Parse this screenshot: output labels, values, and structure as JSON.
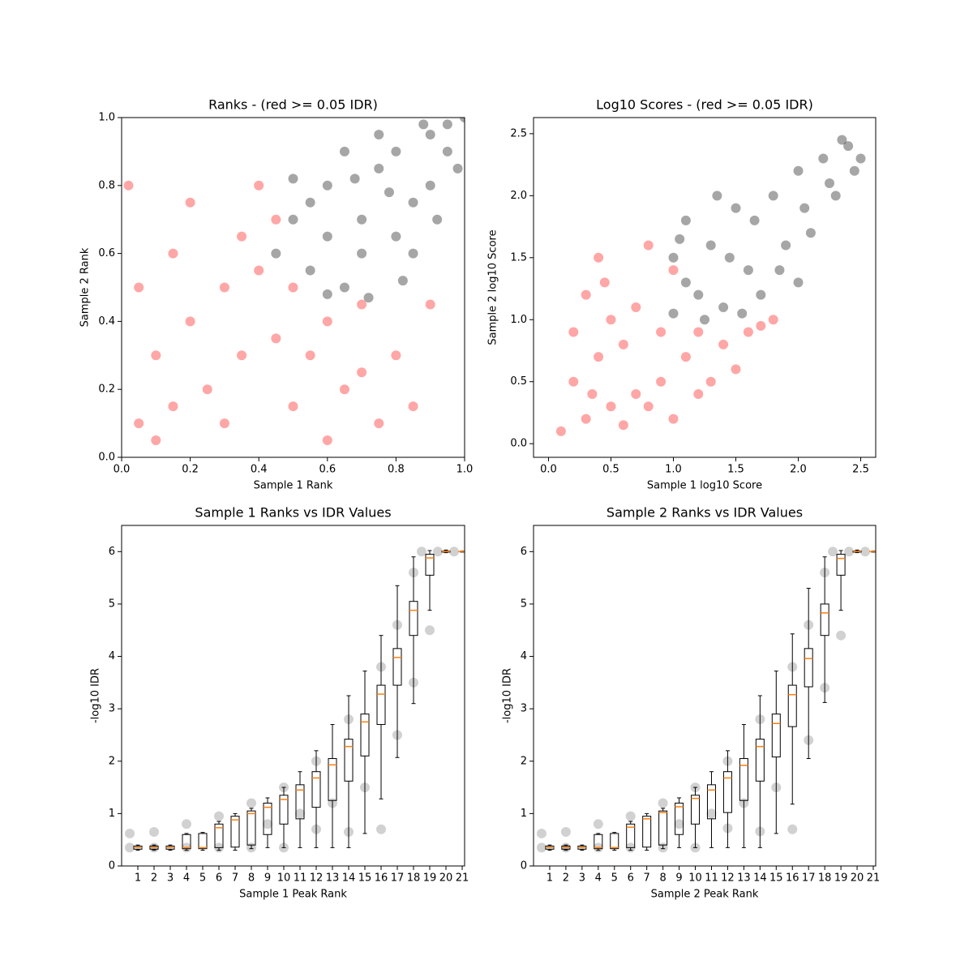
{
  "chart_data": [
    {
      "type": "scatter",
      "title": "Ranks - (red >= 0.05 IDR)",
      "xlabel": "Sample 1 Rank",
      "ylabel": "Sample 2 Rank",
      "xlim": [
        0,
        1
      ],
      "ylim": [
        0,
        1
      ],
      "xticks": [
        {
          "value": 0,
          "label": "0.0"
        },
        {
          "value": 0.2,
          "label": "0.2"
        },
        {
          "value": 0.4,
          "label": "0.4"
        },
        {
          "value": 0.6,
          "label": "0.6"
        },
        {
          "value": 0.8,
          "label": "0.8"
        },
        {
          "value": 1,
          "label": "1.0"
        }
      ],
      "yticks": [
        {
          "value": 0,
          "label": "0.0"
        },
        {
          "value": 0.2,
          "label": "0.2"
        },
        {
          "value": 0.4,
          "label": "0.4"
        },
        {
          "value": 0.6,
          "label": "0.6"
        },
        {
          "value": 0.8,
          "label": "0.8"
        },
        {
          "value": 1,
          "label": "1.0"
        }
      ],
      "series": [
        {
          "color": "#ff0000",
          "x": [
            0.05,
            0.1,
            0.15,
            0.2,
            0.3,
            0.25,
            0.35,
            0.4,
            0.45,
            0.5,
            0.55,
            0.6,
            0.65,
            0.7,
            0.75,
            0.8,
            0.85,
            0.05,
            0.02,
            0.1,
            0.2,
            0.3,
            0.4,
            0.15,
            0.35,
            0.45,
            0.6,
            0.7,
            0.9,
            0.5
          ],
          "y": [
            0.1,
            0.3,
            0.6,
            0.75,
            0.5,
            0.2,
            0.65,
            0.8,
            0.35,
            0.15,
            0.3,
            0.4,
            0.2,
            0.45,
            0.1,
            0.3,
            0.15,
            0.5,
            0.8,
            0.05,
            0.4,
            0.1,
            0.55,
            0.15,
            0.3,
            0.7,
            0.05,
            0.25,
            0.45,
            0.5
          ]
        },
        {
          "color": "#000000",
          "x": [
            0.45,
            0.5,
            0.55,
            0.6,
            0.65,
            0.7,
            0.75,
            0.8,
            0.85,
            0.9,
            0.95,
            1.0,
            0.7,
            0.8,
            0.9,
            0.6,
            0.55,
            0.5,
            0.65,
            0.75,
            0.85,
            0.92,
            0.98,
            0.6,
            0.72,
            0.88,
            0.78,
            0.68,
            0.82,
            0.95
          ],
          "y": [
            0.6,
            0.7,
            0.55,
            0.8,
            0.5,
            0.7,
            0.85,
            0.9,
            0.75,
            0.95,
            0.9,
            1.0,
            0.6,
            0.65,
            0.8,
            0.65,
            0.75,
            0.82,
            0.9,
            0.95,
            0.6,
            0.7,
            0.85,
            0.48,
            0.47,
            0.98,
            0.78,
            0.82,
            0.52,
            0.98
          ]
        }
      ]
    },
    {
      "type": "scatter",
      "title": "Log10 Scores - (red >= 0.05 IDR)",
      "xlabel": "Sample 1 log10 Score",
      "ylabel": "Sample 2 log10 Score",
      "xlim": [
        -0.12,
        2.62
      ],
      "ylim": [
        -0.11,
        2.63
      ],
      "xticks": [
        {
          "value": 0,
          "label": "0.0"
        },
        {
          "value": 0.5,
          "label": "0.5"
        },
        {
          "value": 1,
          "label": "1.0"
        },
        {
          "value": 1.5,
          "label": "1.5"
        },
        {
          "value": 2,
          "label": "2.0"
        },
        {
          "value": 2.5,
          "label": "2.5"
        }
      ],
      "yticks": [
        {
          "value": 0,
          "label": "0.0"
        },
        {
          "value": 0.5,
          "label": "0.5"
        },
        {
          "value": 1,
          "label": "1.0"
        },
        {
          "value": 1.5,
          "label": "1.5"
        },
        {
          "value": 2,
          "label": "2.0"
        },
        {
          "value": 2.5,
          "label": "2.5"
        }
      ],
      "series": [
        {
          "color": "#ff0000",
          "x": [
            0.1,
            0.2,
            0.3,
            0.4,
            0.5,
            0.6,
            0.7,
            0.8,
            0.9,
            1.0,
            1.1,
            1.2,
            1.3,
            1.4,
            1.5,
            1.6,
            1.7,
            0.3,
            0.4,
            0.5,
            0.6,
            0.7,
            0.8,
            0.9,
            1.0,
            1.2,
            0.2,
            0.45,
            0.35,
            1.8
          ],
          "y": [
            0.1,
            0.5,
            1.2,
            1.5,
            0.3,
            0.8,
            1.1,
            1.6,
            0.5,
            0.2,
            0.7,
            0.9,
            0.5,
            0.8,
            0.6,
            0.9,
            0.95,
            0.2,
            0.7,
            1.0,
            0.15,
            0.4,
            0.3,
            0.9,
            1.4,
            0.4,
            0.9,
            1.3,
            0.4,
            1.0
          ]
        },
        {
          "color": "#000000",
          "x": [
            1.0,
            1.0,
            1.1,
            1.2,
            1.3,
            1.4,
            1.5,
            1.6,
            1.7,
            1.8,
            1.9,
            2.0,
            2.1,
            2.2,
            2.3,
            2.4,
            2.5,
            1.1,
            1.25,
            1.45,
            1.65,
            1.85,
            2.05,
            2.25,
            2.45,
            1.05,
            1.35,
            1.55,
            2.0,
            2.35
          ],
          "y": [
            1.05,
            1.5,
            1.8,
            1.2,
            1.6,
            1.1,
            1.9,
            1.4,
            1.2,
            2.0,
            1.6,
            2.2,
            1.7,
            2.3,
            2.0,
            2.4,
            2.3,
            1.3,
            1.0,
            1.5,
            1.8,
            1.4,
            1.9,
            2.1,
            2.2,
            1.65,
            2.0,
            1.05,
            1.3,
            2.45
          ]
        }
      ]
    },
    {
      "type": "box",
      "title": "Sample 1 Ranks vs IDR Values",
      "xlabel": "Sample 1 Peak Rank",
      "ylabel": "-log10 IDR",
      "xlim": [
        0,
        21.15
      ],
      "ylim": [
        0,
        6.5
      ],
      "xticks": [
        1,
        2,
        3,
        4,
        5,
        6,
        7,
        8,
        9,
        10,
        11,
        12,
        13,
        14,
        15,
        16,
        17,
        18,
        19,
        20,
        21
      ],
      "yticks": [
        0,
        1,
        2,
        3,
        4,
        5,
        6
      ],
      "box_color": "#000000",
      "median_color": "#ff7f0e",
      "x": [
        1,
        2,
        3,
        4,
        5,
        6,
        7,
        8,
        9,
        10,
        11,
        12,
        13,
        14,
        15,
        16,
        17,
        18,
        19,
        20,
        21
      ],
      "whislo": [
        0.3,
        0.3,
        0.3,
        0.3,
        0.3,
        0.3,
        0.3,
        0.33,
        0.35,
        0.35,
        0.35,
        0.35,
        0.35,
        0.35,
        0.62,
        1.28,
        2.07,
        3.1,
        4.88,
        5.98,
        5.99
      ],
      "q1": [
        0.32,
        0.32,
        0.32,
        0.33,
        0.33,
        0.35,
        0.36,
        0.4,
        0.6,
        0.8,
        0.9,
        1.12,
        1.25,
        1.62,
        2.1,
        2.7,
        3.45,
        4.4,
        5.55,
        5.99,
        6.0
      ],
      "median": [
        0.35,
        0.35,
        0.35,
        0.35,
        0.35,
        0.73,
        0.88,
        1.0,
        1.12,
        1.27,
        1.45,
        1.68,
        1.93,
        2.28,
        2.75,
        3.28,
        3.98,
        4.88,
        5.88,
        6.0,
        6.0
      ],
      "q3": [
        0.38,
        0.38,
        0.38,
        0.6,
        0.62,
        0.8,
        0.95,
        1.05,
        1.2,
        1.35,
        1.55,
        1.8,
        2.05,
        2.42,
        2.9,
        3.45,
        4.15,
        5.05,
        5.95,
        6.01,
        6.0
      ],
      "whishi": [
        0.4,
        0.4,
        0.4,
        0.62,
        0.64,
        0.85,
        1.0,
        1.1,
        1.3,
        1.5,
        1.8,
        2.2,
        2.7,
        3.25,
        3.72,
        4.4,
        5.35,
        5.9,
        6.02,
        6.03,
        6.01
      ],
      "series": [
        {
          "color": "#000000",
          "x": [
            0.5,
            2,
            4,
            6,
            8,
            10,
            0.5,
            2,
            4,
            6,
            8,
            10,
            12,
            14,
            16,
            17,
            18,
            18.5,
            19.5,
            20.5,
            12,
            14,
            16,
            17,
            18,
            19,
            15,
            13,
            11,
            9
          ],
          "y": [
            0.35,
            0.35,
            0.35,
            0.35,
            0.35,
            0.35,
            0.62,
            0.65,
            0.8,
            0.95,
            1.2,
            1.5,
            2.0,
            2.8,
            3.8,
            4.6,
            5.6,
            6.0,
            6.0,
            6.0,
            0.7,
            0.65,
            0.7,
            2.5,
            3.5,
            4.5,
            1.5,
            1.2,
            1.0,
            0.8
          ]
        }
      ]
    },
    {
      "type": "box",
      "title": "Sample 2 Ranks vs IDR Values",
      "xlabel": "Sample 2 Peak Rank",
      "ylabel": "-log10 IDR",
      "xlim": [
        0,
        21.15
      ],
      "ylim": [
        0,
        6.5
      ],
      "xticks": [
        1,
        2,
        3,
        4,
        5,
        6,
        7,
        8,
        9,
        10,
        11,
        12,
        13,
        14,
        15,
        16,
        17,
        18,
        19,
        20,
        21
      ],
      "yticks": [
        0,
        1,
        2,
        3,
        4,
        5,
        6
      ],
      "box_color": "#000000",
      "median_color": "#ff7f0e",
      "x": [
        1,
        2,
        3,
        4,
        5,
        6,
        7,
        8,
        9,
        10,
        11,
        12,
        13,
        14,
        15,
        16,
        17,
        18,
        19,
        20,
        21
      ],
      "whislo": [
        0.3,
        0.3,
        0.3,
        0.3,
        0.3,
        0.3,
        0.3,
        0.33,
        0.35,
        0.35,
        0.35,
        0.35,
        0.35,
        0.35,
        0.62,
        1.18,
        2.05,
        3.12,
        4.88,
        5.98,
        5.99
      ],
      "q1": [
        0.32,
        0.32,
        0.32,
        0.33,
        0.33,
        0.35,
        0.36,
        0.4,
        0.6,
        0.8,
        0.9,
        1.02,
        1.25,
        1.62,
        2.08,
        2.66,
        3.42,
        4.4,
        5.55,
        5.99,
        6.0
      ],
      "median": [
        0.35,
        0.35,
        0.35,
        0.35,
        0.35,
        0.74,
        0.9,
        1.02,
        1.13,
        1.29,
        1.45,
        1.68,
        1.92,
        2.28,
        2.72,
        3.27,
        3.96,
        4.83,
        5.87,
        6.0,
        6.0
      ],
      "q3": [
        0.38,
        0.38,
        0.38,
        0.6,
        0.62,
        0.8,
        0.95,
        1.05,
        1.2,
        1.35,
        1.55,
        1.8,
        2.05,
        2.42,
        2.9,
        3.45,
        4.15,
        5.0,
        5.95,
        6.01,
        6.0
      ],
      "whishi": [
        0.4,
        0.4,
        0.4,
        0.62,
        0.64,
        0.85,
        1.0,
        1.1,
        1.3,
        1.5,
        1.8,
        2.2,
        2.7,
        3.25,
        3.72,
        4.43,
        5.3,
        5.9,
        6.02,
        6.03,
        6.01
      ],
      "series": [
        {
          "color": "#000000",
          "x": [
            0.5,
            2,
            4,
            6,
            8,
            10,
            0.5,
            2,
            4,
            6,
            8,
            10,
            12,
            14,
            16,
            17,
            18,
            18.5,
            19.5,
            20.5,
            12,
            14,
            16,
            17,
            18,
            19,
            15,
            13,
            11,
            9
          ],
          "y": [
            0.35,
            0.35,
            0.35,
            0.35,
            0.35,
            0.35,
            0.62,
            0.65,
            0.8,
            0.95,
            1.2,
            1.5,
            2.0,
            2.8,
            3.8,
            4.6,
            5.6,
            6.0,
            6.0,
            6.0,
            0.72,
            0.66,
            0.7,
            2.4,
            3.4,
            4.4,
            1.5,
            1.2,
            1.0,
            0.8
          ]
        }
      ]
    }
  ]
}
